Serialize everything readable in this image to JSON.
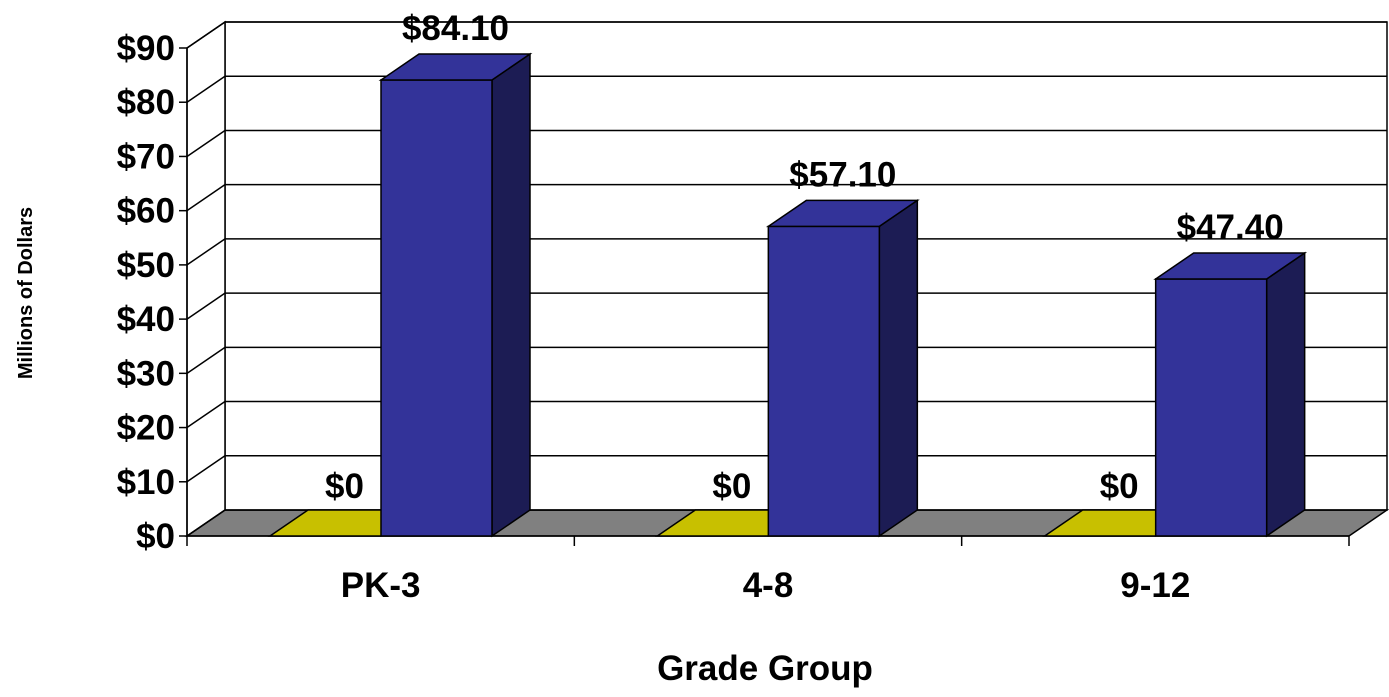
{
  "chart_data": {
    "type": "bar",
    "title": "",
    "xlabel": "Grade Group",
    "ylabel": "Millions of Dollars",
    "categories": [
      "PK-3",
      "4-8",
      "9-12"
    ],
    "series": [
      {
        "values": [
          0,
          0,
          0
        ],
        "labels": [
          "$0",
          "$0",
          "$0"
        ],
        "color": "#C8C000"
      },
      {
        "values": [
          84.1,
          57.1,
          47.4
        ],
        "labels": [
          "$84.10",
          "$57.10",
          "$47.40"
        ],
        "color": "#333399"
      }
    ],
    "ylim": [
      0,
      90
    ],
    "yticks": [
      0,
      10,
      20,
      30,
      40,
      50,
      60,
      70,
      80,
      90
    ],
    "ytick_labels": [
      "$0",
      "$10",
      "$20",
      "$30",
      "$40",
      "$50",
      "$60",
      "$70",
      "$80",
      "$90"
    ],
    "grid": true,
    "legend": "none",
    "style": "3d-clustered"
  }
}
